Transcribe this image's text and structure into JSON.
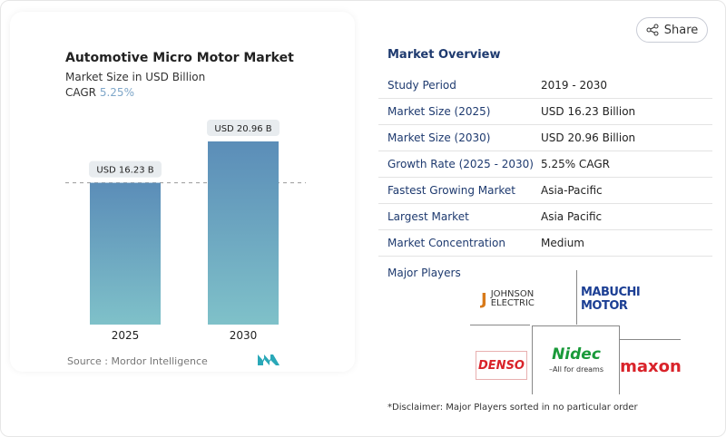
{
  "share": {
    "label": "Share",
    "icon": "share-icon"
  },
  "chart_card": {
    "title": "Automotive Micro Motor Market",
    "subtitle": "Market Size in USD Billion",
    "cagr_label": "CAGR",
    "cagr_value": "5.25%",
    "source": "Source :  Mordor Intelligence"
  },
  "chart_data": {
    "type": "bar",
    "categories": [
      "2025",
      "2030"
    ],
    "values": [
      16.23,
      20.96
    ],
    "data_labels": [
      "USD 16.23 B",
      "USD 20.96 B"
    ],
    "ylim": [
      0,
      21
    ],
    "grid": false,
    "reference_line": 16.23,
    "colors": [
      "#5b8db8",
      "#7fc1c9"
    ]
  },
  "overview": {
    "title": "Market Overview",
    "rows": [
      {
        "label": "Study Period",
        "value": "2019 - 2030"
      },
      {
        "label": "Market Size (2025)",
        "value": "USD 16.23 Billion"
      },
      {
        "label": "Market Size (2030)",
        "value": "USD 20.96 Billion"
      },
      {
        "label": "Growth Rate (2025 - 2030)",
        "value": "5.25% CAGR"
      },
      {
        "label": "Fastest Growing Market",
        "value": "Asia-Pacific"
      },
      {
        "label": "Largest Market",
        "value": "Asia Pacific"
      },
      {
        "label": "Market Concentration",
        "value": "Medium"
      }
    ],
    "players_title": "Major Players",
    "players": [
      "JOHNSON ELECTRIC",
      "MABUCHI MOTOR",
      "DENSO",
      "Nidec",
      "maxon"
    ],
    "nidec_tagline": "All for dreams",
    "disclaimer": "*Disclaimer: Major Players sorted in no particular order"
  }
}
